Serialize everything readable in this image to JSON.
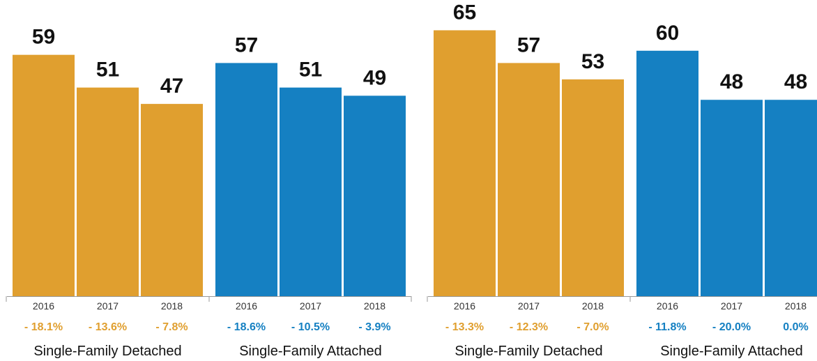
{
  "colors": {
    "detached": "#E09F2F",
    "attached": "#1580C2"
  },
  "chart_data": [
    {
      "type": "bar",
      "title": "",
      "xlabel": "",
      "ylabel": "",
      "ylim": [
        0,
        70
      ],
      "grid": false,
      "groups": [
        {
          "label": "Single-Family Detached",
          "color_key": "detached",
          "categories": [
            "2016",
            "2017",
            "2018"
          ],
          "values": [
            59,
            51,
            47
          ],
          "changes": [
            "- 18.1%",
            "- 13.6%",
            "- 7.8%"
          ]
        },
        {
          "label": "Single-Family Attached",
          "color_key": "attached",
          "categories": [
            "2016",
            "2017",
            "2018"
          ],
          "values": [
            57,
            51,
            49
          ],
          "changes": [
            "- 18.6%",
            "- 10.5%",
            "- 3.9%"
          ]
        }
      ]
    },
    {
      "type": "bar",
      "title": "",
      "xlabel": "",
      "ylabel": "",
      "ylim": [
        0,
        70
      ],
      "grid": false,
      "groups": [
        {
          "label": "Single-Family Detached",
          "color_key": "detached",
          "categories": [
            "2016",
            "2017",
            "2018"
          ],
          "values": [
            65,
            57,
            53
          ],
          "changes": [
            "- 13.3%",
            "- 12.3%",
            "- 7.0%"
          ]
        },
        {
          "label": "Single-Family Attached",
          "color_key": "attached",
          "categories": [
            "2016",
            "2017",
            "2018"
          ],
          "values": [
            60,
            48,
            48
          ],
          "changes": [
            "- 11.8%",
            "- 20.0%",
            "0.0%"
          ]
        }
      ]
    }
  ]
}
